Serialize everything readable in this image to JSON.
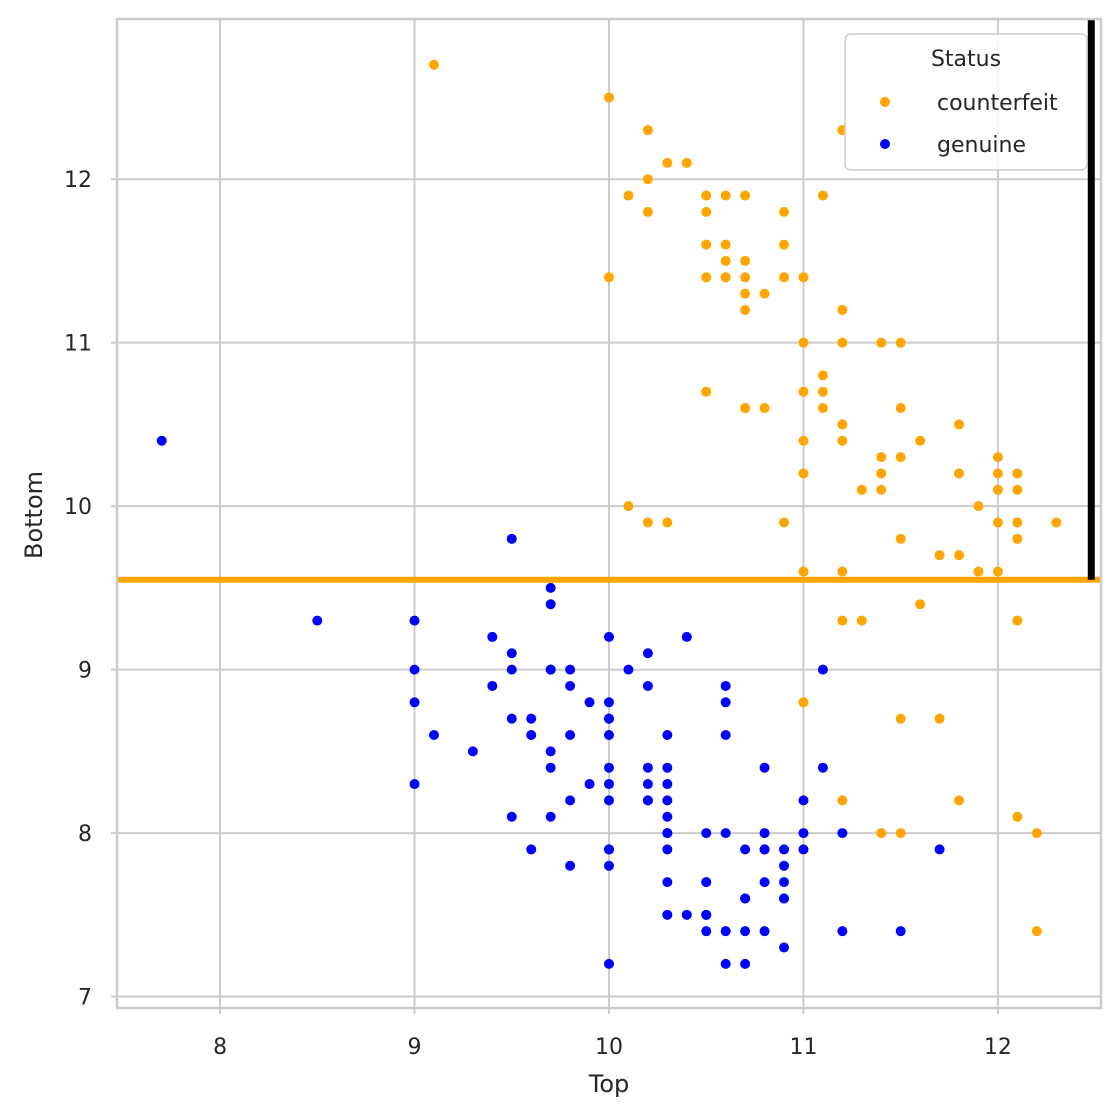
{
  "chart_data": {
    "type": "scatter",
    "title": "",
    "xlabel": "Top",
    "ylabel": "Bottom",
    "xlim": [
      7.47,
      12.53
    ],
    "ylim": [
      6.93,
      12.98
    ],
    "xticks": [
      "8",
      "9",
      "10",
      "11",
      "12"
    ],
    "yticks": [
      "7",
      "8",
      "9",
      "10",
      "11",
      "12"
    ],
    "grid": true,
    "legend": {
      "title": "Status",
      "position": "top-right",
      "entries": [
        "counterfeit",
        "genuine"
      ]
    },
    "colors": {
      "counterfeit": "#ffa500",
      "genuine": "#0000ff",
      "xlabel": "#ff0000",
      "grid": "#cccccc",
      "hline": "#ffa500",
      "vline": "#000000"
    },
    "reference_lines": [
      {
        "orientation": "horizontal",
        "y": 9.55,
        "color": "#ffa500"
      },
      {
        "orientation": "vertical",
        "x": 12.48,
        "y_from": 9.55,
        "y_to": 12.98,
        "color": "#000000"
      }
    ],
    "series": [
      {
        "name": "counterfeit",
        "x": [
          9.1,
          10.0,
          10.2,
          10.3,
          10.4,
          10.2,
          10.1,
          10.2,
          10.5,
          10.6,
          10.7,
          10.9,
          11.1,
          10.5,
          10.5,
          10.6,
          10.6,
          10.7,
          10.9,
          10.6,
          10.7,
          10.0,
          10.5,
          10.6,
          10.7,
          10.9,
          11.0,
          10.7,
          10.8,
          10.7,
          11.2,
          11.0,
          11.2,
          11.4,
          11.5,
          11.1,
          11.1,
          10.5,
          11.0,
          10.7,
          10.8,
          11.1,
          11.5,
          11.2,
          11.8,
          11.0,
          11.2,
          11.6,
          11.4,
          11.5,
          11.0,
          11.4,
          11.8,
          12.0,
          12.1,
          12.0,
          11.9,
          11.3,
          11.4,
          12.0,
          12.1,
          10.1,
          10.2,
          10.3,
          10.9,
          12.0,
          12.1,
          12.3,
          11.5,
          12.1,
          11.7,
          11.8,
          11.0,
          11.2,
          11.9,
          12.0,
          11.6,
          11.2,
          11.3,
          12.1,
          11.0,
          11.5,
          11.7,
          11.2,
          11.8,
          11.4,
          11.5,
          12.1,
          12.2,
          12.2,
          11.2
        ],
        "y": [
          12.7,
          12.5,
          12.3,
          12.1,
          12.1,
          12.0,
          11.9,
          11.8,
          11.9,
          11.9,
          11.9,
          11.8,
          11.9,
          11.8,
          11.6,
          11.6,
          11.5,
          11.5,
          11.6,
          11.4,
          11.4,
          11.4,
          11.4,
          11.4,
          11.3,
          11.4,
          11.4,
          11.2,
          11.3,
          10.6,
          11.2,
          11.0,
          11.0,
          11.0,
          11.0,
          10.8,
          10.7,
          10.7,
          10.7,
          10.6,
          10.6,
          10.6,
          10.6,
          10.5,
          10.5,
          10.4,
          10.4,
          10.4,
          10.3,
          10.3,
          10.2,
          10.2,
          10.2,
          10.3,
          10.2,
          10.2,
          10.0,
          10.1,
          10.1,
          10.1,
          10.1,
          10.0,
          9.9,
          9.9,
          9.9,
          9.9,
          9.9,
          9.9,
          9.8,
          9.8,
          9.7,
          9.7,
          9.6,
          9.6,
          9.6,
          9.6,
          9.4,
          9.3,
          9.3,
          9.3,
          8.8,
          8.7,
          8.7,
          8.2,
          8.2,
          8.0,
          8.0,
          8.1,
          8.0,
          7.4,
          12.3
        ]
      },
      {
        "name": "genuine",
        "x": [
          7.7,
          9.5,
          8.5,
          9.0,
          9.0,
          9.0,
          9.0,
          9.1,
          9.3,
          9.4,
          9.4,
          9.5,
          9.5,
          9.5,
          9.5,
          9.6,
          9.6,
          9.6,
          9.7,
          9.7,
          9.7,
          9.7,
          9.7,
          9.7,
          9.7,
          9.8,
          9.8,
          9.8,
          9.8,
          9.8,
          9.9,
          9.9,
          10.0,
          10.0,
          10.0,
          10.0,
          10.0,
          10.0,
          10.0,
          10.0,
          10.0,
          10.0,
          10.0,
          10.0,
          10.1,
          10.2,
          10.2,
          10.2,
          10.2,
          10.2,
          10.3,
          10.3,
          10.3,
          10.3,
          10.3,
          10.3,
          10.3,
          10.3,
          10.3,
          10.4,
          10.4,
          10.5,
          10.5,
          10.5,
          10.5,
          10.5,
          10.5,
          10.6,
          10.6,
          10.6,
          10.6,
          10.6,
          10.6,
          10.7,
          10.7,
          10.7,
          10.7,
          10.7,
          10.8,
          10.8,
          10.8,
          10.8,
          10.8,
          10.8,
          10.9,
          10.9,
          10.9,
          10.9,
          10.9,
          10.9,
          11.0,
          11.0,
          11.0,
          11.1,
          11.1,
          11.2,
          11.2,
          11.5,
          11.7,
          10.2,
          10.3
        ],
        "y": [
          10.4,
          9.8,
          9.3,
          9.3,
          9.0,
          8.8,
          8.3,
          8.6,
          8.5,
          9.2,
          8.9,
          9.1,
          9.0,
          8.7,
          8.1,
          8.7,
          8.6,
          7.9,
          9.5,
          9.4,
          9.0,
          8.5,
          8.4,
          8.1,
          9.0,
          9.0,
          8.9,
          8.6,
          8.2,
          7.8,
          8.8,
          8.3,
          9.2,
          8.8,
          8.7,
          8.6,
          8.4,
          8.3,
          7.9,
          7.8,
          7.2,
          8.2,
          8.7,
          7.9,
          9.0,
          9.1,
          8.9,
          8.4,
          8.3,
          8.2,
          8.6,
          8.4,
          8.2,
          8.1,
          8.0,
          7.9,
          7.7,
          7.5,
          8.0,
          9.2,
          7.5,
          8.0,
          7.7,
          7.5,
          7.4,
          7.7,
          7.5,
          8.9,
          8.8,
          8.6,
          8.0,
          7.4,
          7.2,
          7.9,
          7.6,
          7.4,
          7.2,
          7.6,
          8.4,
          8.0,
          7.9,
          7.7,
          7.4,
          7.9,
          7.9,
          7.8,
          7.7,
          7.6,
          7.3,
          7.6,
          8.2,
          8.0,
          7.9,
          9.0,
          8.4,
          8.0,
          7.4,
          7.4,
          7.9,
          8.2,
          8.3
        ]
      }
    ]
  }
}
